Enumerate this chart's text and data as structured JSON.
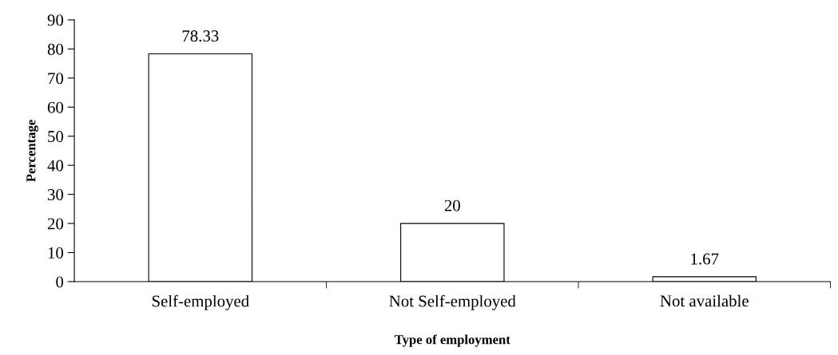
{
  "chart_data": {
    "type": "bar",
    "xlabel": "Type of employment",
    "ylabel": "Percentage",
    "categories": [
      "Self-employed",
      "Not Self-employed",
      "Not available"
    ],
    "values": [
      78.33,
      20,
      1.67
    ],
    "color": "#ffffff",
    "ylim": [
      0,
      90
    ],
    "yticks": [
      0,
      10,
      20,
      30,
      40,
      50,
      60,
      70,
      80,
      90
    ],
    "data_labels": true,
    "grid": false,
    "legend": false
  }
}
